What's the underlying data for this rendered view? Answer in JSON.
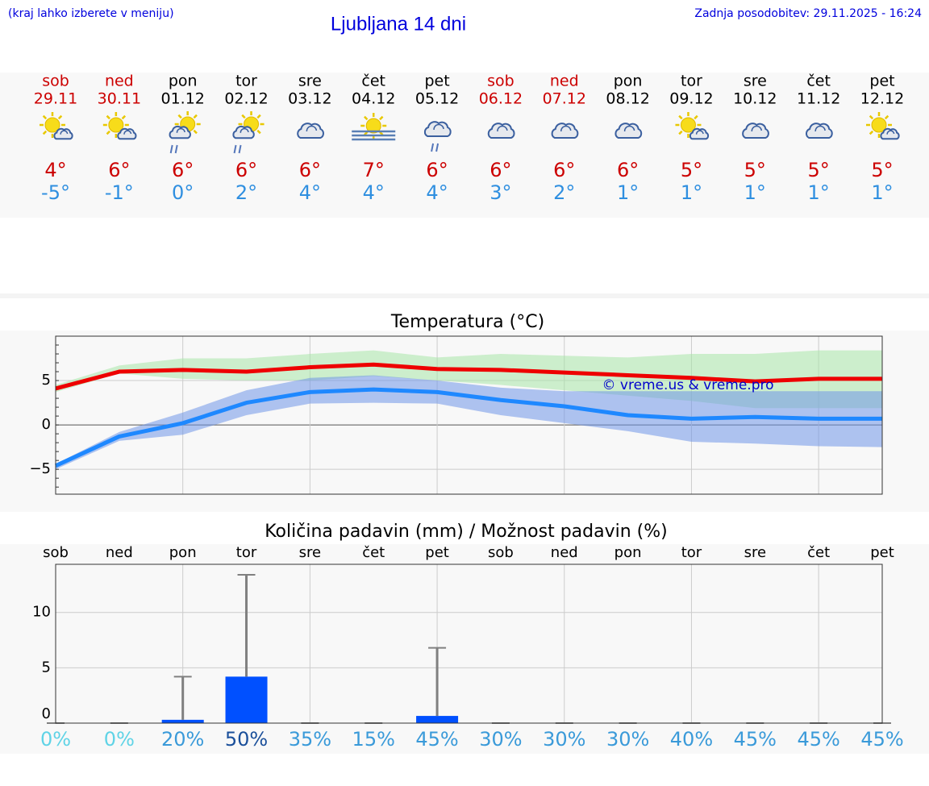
{
  "header": {
    "hint": "(kraj lahko izberete v meniju)",
    "title": "Ljubljana 14 dni",
    "updated": "Zadnja posodobitev: 29.11.2025 - 16:24"
  },
  "forecast": {
    "days": [
      {
        "day": "sob",
        "date": "29.11",
        "weekend": true,
        "icon": "sun-cloud",
        "max": 4,
        "max_label": "4°",
        "min": -5,
        "min_label": "-5°"
      },
      {
        "day": "ned",
        "date": "30.11",
        "weekend": true,
        "icon": "sun-cloud",
        "max": 6,
        "max_label": "6°",
        "min": -1,
        "min_label": "-1°"
      },
      {
        "day": "pon",
        "date": "01.12",
        "weekend": false,
        "icon": "sun-cloud-rain",
        "max": 6,
        "max_label": "6°",
        "min": 0,
        "min_label": "0°"
      },
      {
        "day": "tor",
        "date": "02.12",
        "weekend": false,
        "icon": "sun-cloud-rain",
        "max": 6,
        "max_label": "6°",
        "min": 2,
        "min_label": "2°"
      },
      {
        "day": "sre",
        "date": "03.12",
        "weekend": false,
        "icon": "cloud",
        "max": 6,
        "max_label": "6°",
        "min": 4,
        "min_label": "4°"
      },
      {
        "day": "čet",
        "date": "04.12",
        "weekend": false,
        "icon": "fog-sun",
        "max": 7,
        "max_label": "7°",
        "min": 4,
        "min_label": "4°"
      },
      {
        "day": "pet",
        "date": "05.12",
        "weekend": false,
        "icon": "cloud-rain",
        "max": 6,
        "max_label": "6°",
        "min": 4,
        "min_label": "4°"
      },
      {
        "day": "sob",
        "date": "06.12",
        "weekend": true,
        "icon": "cloud",
        "max": 6,
        "max_label": "6°",
        "min": 3,
        "min_label": "3°"
      },
      {
        "day": "ned",
        "date": "07.12",
        "weekend": true,
        "icon": "cloud",
        "max": 6,
        "max_label": "6°",
        "min": 2,
        "min_label": "2°"
      },
      {
        "day": "pon",
        "date": "08.12",
        "weekend": false,
        "icon": "cloud",
        "max": 6,
        "max_label": "6°",
        "min": 1,
        "min_label": "1°"
      },
      {
        "day": "tor",
        "date": "09.12",
        "weekend": false,
        "icon": "sun-cloud",
        "max": 5,
        "max_label": "5°",
        "min": 1,
        "min_label": "1°"
      },
      {
        "day": "sre",
        "date": "10.12",
        "weekend": false,
        "icon": "cloud",
        "max": 5,
        "max_label": "5°",
        "min": 1,
        "min_label": "1°"
      },
      {
        "day": "čet",
        "date": "11.12",
        "weekend": false,
        "icon": "cloud",
        "max": 5,
        "max_label": "5°",
        "min": 1,
        "min_label": "1°"
      },
      {
        "day": "pet",
        "date": "12.12",
        "weekend": false,
        "icon": "sun-cloud",
        "max": 5,
        "max_label": "5°",
        "min": 1,
        "min_label": "1°"
      }
    ]
  },
  "chart_data": [
    {
      "type": "line",
      "title": "Temperatura (°C)",
      "annotation": "© vreme.us & vreme.pro",
      "ylim": [
        -7.8,
        10
      ],
      "yticks": [
        {
          "value": -5,
          "label": "−5"
        },
        0,
        5
      ],
      "grid": true,
      "bands": [
        {
          "color": "#a8e6a8",
          "upper": [
            4.5,
            6.7,
            7.5,
            7.5,
            8.0,
            8.4,
            7.6,
            8.0,
            7.8,
            7.6,
            8.0,
            8.0,
            8.4,
            8.4
          ],
          "lower": [
            3.7,
            5.8,
            5.2,
            5.0,
            5.0,
            5.5,
            5.0,
            4.5,
            3.9,
            3.3,
            2.7,
            1.9,
            1.9,
            1.9
          ]
        },
        {
          "color": "#6f96e8",
          "upper": [
            -4.4,
            -0.8,
            1.4,
            3.9,
            5.3,
            5.6,
            5.0,
            4.2,
            3.8,
            3.8,
            3.8,
            3.8,
            3.8,
            3.8
          ],
          "lower": [
            -5.0,
            -1.8,
            -1.1,
            1.1,
            2.4,
            2.5,
            2.4,
            1.1,
            0.2,
            -0.7,
            -1.9,
            -2.1,
            -2.4,
            -2.5
          ]
        }
      ],
      "series": [
        {
          "color": "#ee0000",
          "values": [
            4.1,
            6.0,
            6.2,
            6.0,
            6.5,
            6.8,
            6.3,
            6.2,
            5.9,
            5.6,
            5.3,
            4.9,
            5.2,
            5.2
          ]
        },
        {
          "color": "#1e88ff",
          "values": [
            -4.6,
            -1.3,
            0.2,
            2.5,
            3.7,
            4.0,
            3.7,
            2.8,
            2.1,
            1.1,
            0.7,
            0.9,
            0.7,
            0.7
          ]
        }
      ]
    },
    {
      "type": "bar",
      "title": "Količina padavin (mm) / Možnost padavin (%)",
      "categories": [
        "sob",
        "ned",
        "pon",
        "tor",
        "sre",
        "čet",
        "pet",
        "sob",
        "ned",
        "pon",
        "tor",
        "sre",
        "čet",
        "pet"
      ],
      "values": [
        0,
        0,
        0.3,
        4.2,
        0,
        0,
        0.65,
        0,
        0,
        0,
        0,
        0,
        0,
        0
      ],
      "max_values": [
        0,
        0,
        4.2,
        13.4,
        0,
        0,
        6.8,
        0,
        0,
        0,
        0,
        0,
        0,
        0
      ],
      "color": "#0050ff",
      "error_color": "#808080",
      "ylim": [
        0,
        14.35
      ],
      "yticks": [
        0,
        5,
        10
      ],
      "grid": true,
      "probability": {
        "values": [
          0,
          0,
          20,
          50,
          35,
          15,
          45,
          30,
          30,
          30,
          40,
          45,
          45,
          45
        ],
        "value_labels": [
          "0%",
          "0%",
          "20%",
          "50%",
          "35%",
          "15%",
          "45%",
          "30%",
          "30%",
          "30%",
          "40%",
          "45%",
          "45%",
          "45%"
        ],
        "colors": [
          "#5fd3e6",
          "#5fd3e6",
          "#3a9ad9",
          "#1a4f9a",
          "#3a9ad9",
          "#3a9ad9",
          "#3a9ad9",
          "#3a9ad9",
          "#3a9ad9",
          "#3a9ad9",
          "#3a9ad9",
          "#3a9ad9",
          "#3a9ad9",
          "#3a9ad9"
        ]
      }
    }
  ]
}
